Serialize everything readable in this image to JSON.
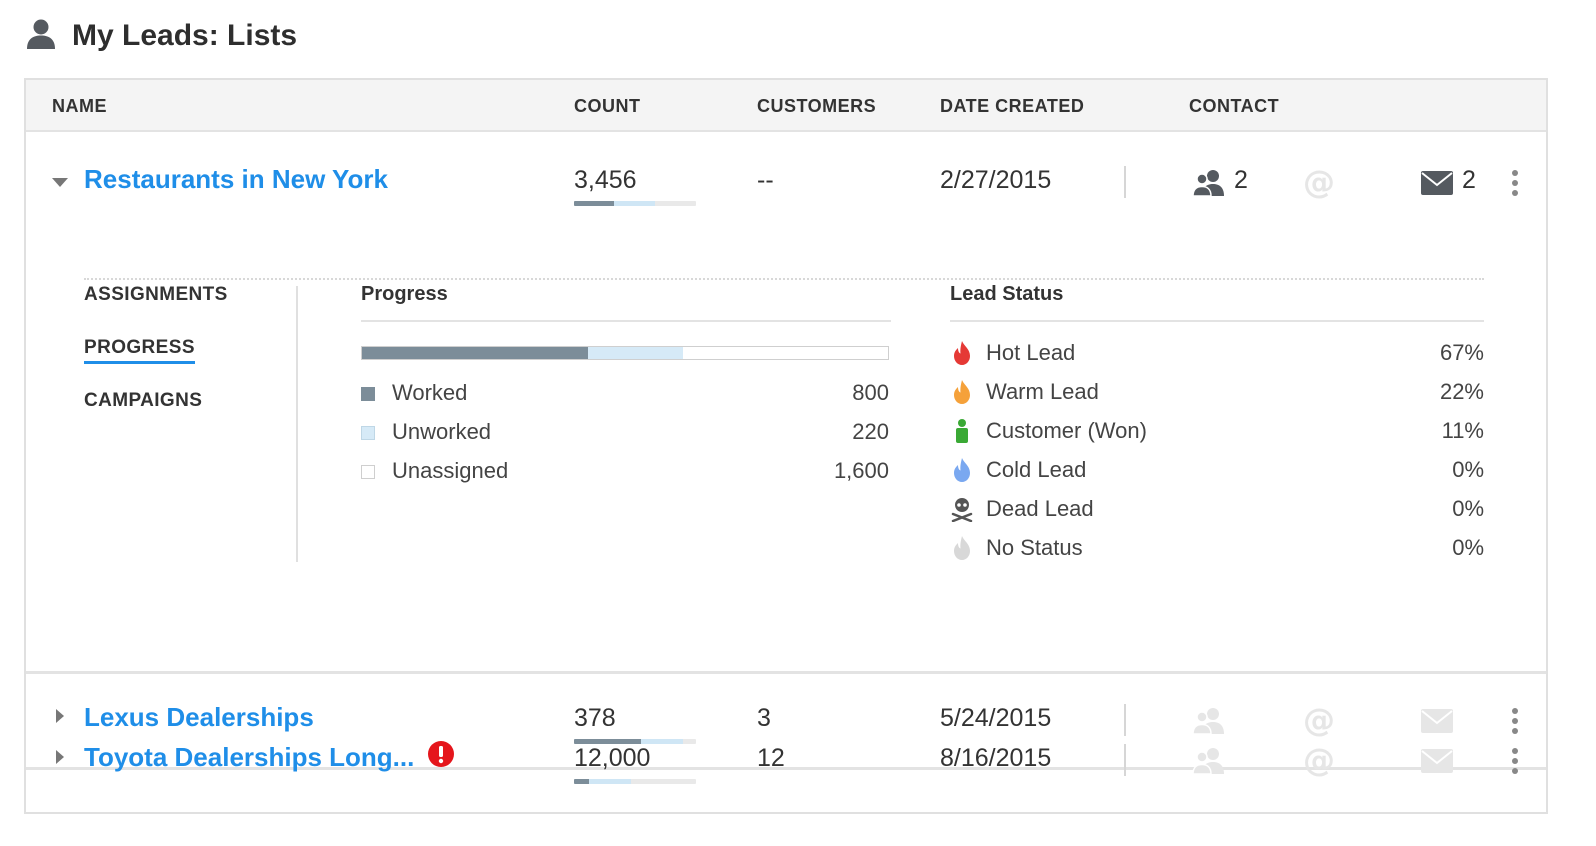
{
  "page": {
    "title": "My Leads: Lists",
    "icon": "person-icon"
  },
  "columns": [
    "NAME",
    "COUNT",
    "CUSTOMERS",
    "DATE CREATED",
    "CONTACT"
  ],
  "rows": [
    {
      "name": "Restaurants in New York",
      "count": "3,456",
      "count_worked_fraction": 0.33,
      "count_unworked_fraction": 0.33,
      "customers": "--",
      "date_created": "2/27/2015",
      "contacts_count": "2",
      "emails_count": "2",
      "expanded": true,
      "alert": false
    },
    {
      "name": "Lexus Dealerships",
      "count": "378",
      "count_worked_fraction": 0.55,
      "count_unworked_fraction": 0.34,
      "customers": "3",
      "date_created": "5/24/2015",
      "contacts_count": "",
      "emails_count": "",
      "expanded": false,
      "alert": false
    },
    {
      "name": "Toyota Dealerships Long...",
      "count": "12,000",
      "count_worked_fraction": 0.12,
      "count_unworked_fraction": 0.35,
      "customers": "12",
      "date_created": "8/16/2015",
      "contacts_count": "",
      "emails_count": "",
      "expanded": false,
      "alert": true
    }
  ],
  "detail": {
    "nav": [
      "ASSIGNMENTS",
      "PROGRESS",
      "CAMPAIGNS"
    ],
    "active_nav": "PROGRESS",
    "progress": {
      "title": "Progress",
      "worked_fraction": 0.43,
      "unworked_fraction": 0.18,
      "legend": [
        {
          "label": "Worked",
          "value": "800",
          "color": "#7c8d99"
        },
        {
          "label": "Unworked",
          "value": "220",
          "color": "#d6eaf7"
        },
        {
          "label": "Unassigned",
          "value": "1,600",
          "color": "#ffffff"
        }
      ]
    },
    "lead_status": {
      "title": "Lead Status",
      "items": [
        {
          "label": "Hot Lead",
          "pct": "67%",
          "icon": "flame-icon",
          "color": "#e53935"
        },
        {
          "label": "Warm Lead",
          "pct": "22%",
          "icon": "flame-icon",
          "color": "#f5a13a"
        },
        {
          "label": "Customer (Won)",
          "pct": "11%",
          "icon": "person-icon",
          "color": "#3aa935"
        },
        {
          "label": "Cold Lead",
          "pct": "0%",
          "icon": "flame-icon",
          "color": "#7aa8f0"
        },
        {
          "label": "Dead Lead",
          "pct": "0%",
          "icon": "skull-icon",
          "color": "#555555"
        },
        {
          "label": "No Status",
          "pct": "0%",
          "icon": "flame-icon",
          "color": "#d8d8d8"
        }
      ]
    }
  },
  "colors": {
    "link": "#1f8ee8",
    "worked": "#7c8d99",
    "unworked": "#cfe6f5",
    "alert": "#e5161c",
    "icon_active": "#555a60",
    "icon_inactive": "#e6e6e6"
  }
}
